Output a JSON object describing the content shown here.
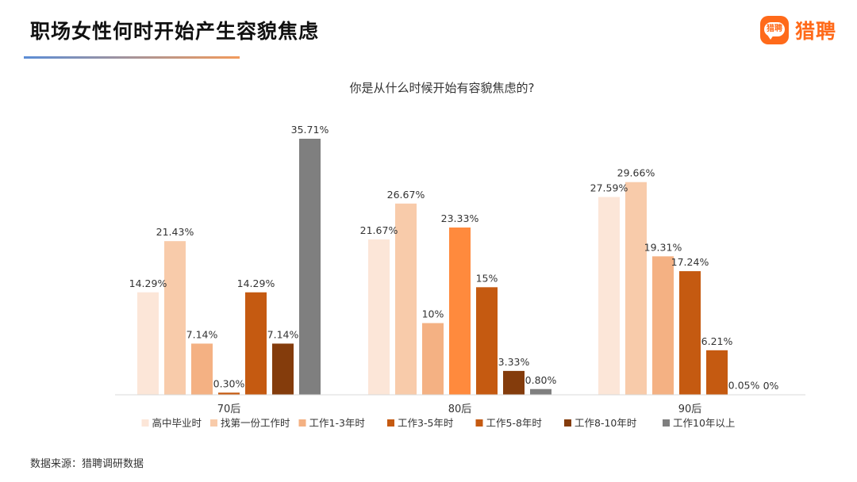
{
  "page_title": "职场女性何时开始产生容貌焦虑",
  "brand": {
    "name": "猎聘",
    "logo_text": "猎聘",
    "color": "#ff6a1a"
  },
  "source": "数据来源：猎聘调研数据",
  "chart_data": {
    "type": "bar",
    "title": "你是从什么时候开始有容貌焦虑的?",
    "categories": [
      "70后",
      "80后",
      "90后"
    ],
    "series": [
      {
        "name": "高中毕业时",
        "color": "#fce6d8",
        "values": [
          14.29,
          21.67,
          27.59
        ],
        "labels": [
          "14.29%",
          "21.67%",
          "27.59%"
        ]
      },
      {
        "name": "找第一份工作时",
        "color": "#f8cbaa",
        "values": [
          21.43,
          26.67,
          29.66
        ],
        "labels": [
          "21.43%",
          "26.67%",
          "29.66%"
        ]
      },
      {
        "name": "工作1-3年时",
        "color": "#f4b183",
        "values": [
          7.14,
          10,
          19.31
        ],
        "labels": [
          "7.14%",
          "10%",
          "19.31%"
        ]
      },
      {
        "name": "工作3-5年时",
        "color": "#c55a11",
        "values": [
          0.3,
          23.33,
          17.24
        ],
        "labels": [
          "0.30%",
          "23.33%",
          "17.24%"
        ],
        "highlight": {
          "index": 1,
          "color": "#ff8a3d"
        }
      },
      {
        "name": "工作5-8年时",
        "color": "#c55a11",
        "values": [
          14.29,
          15,
          6.21
        ],
        "labels": [
          "14.29%",
          "15%",
          "6.21%"
        ]
      },
      {
        "name": "工作8-10年时",
        "color": "#843c0c",
        "values": [
          7.14,
          3.33,
          0.05
        ],
        "labels": [
          "7.14%",
          "3.33%",
          "0.05%"
        ]
      },
      {
        "name": "工作10年以上",
        "color": "#7f7f7f",
        "values": [
          35.71,
          0.8,
          0
        ],
        "labels": [
          "35.71%",
          "0.80%",
          "0%"
        ]
      }
    ],
    "legend_position": "bottom",
    "grid": false
  }
}
